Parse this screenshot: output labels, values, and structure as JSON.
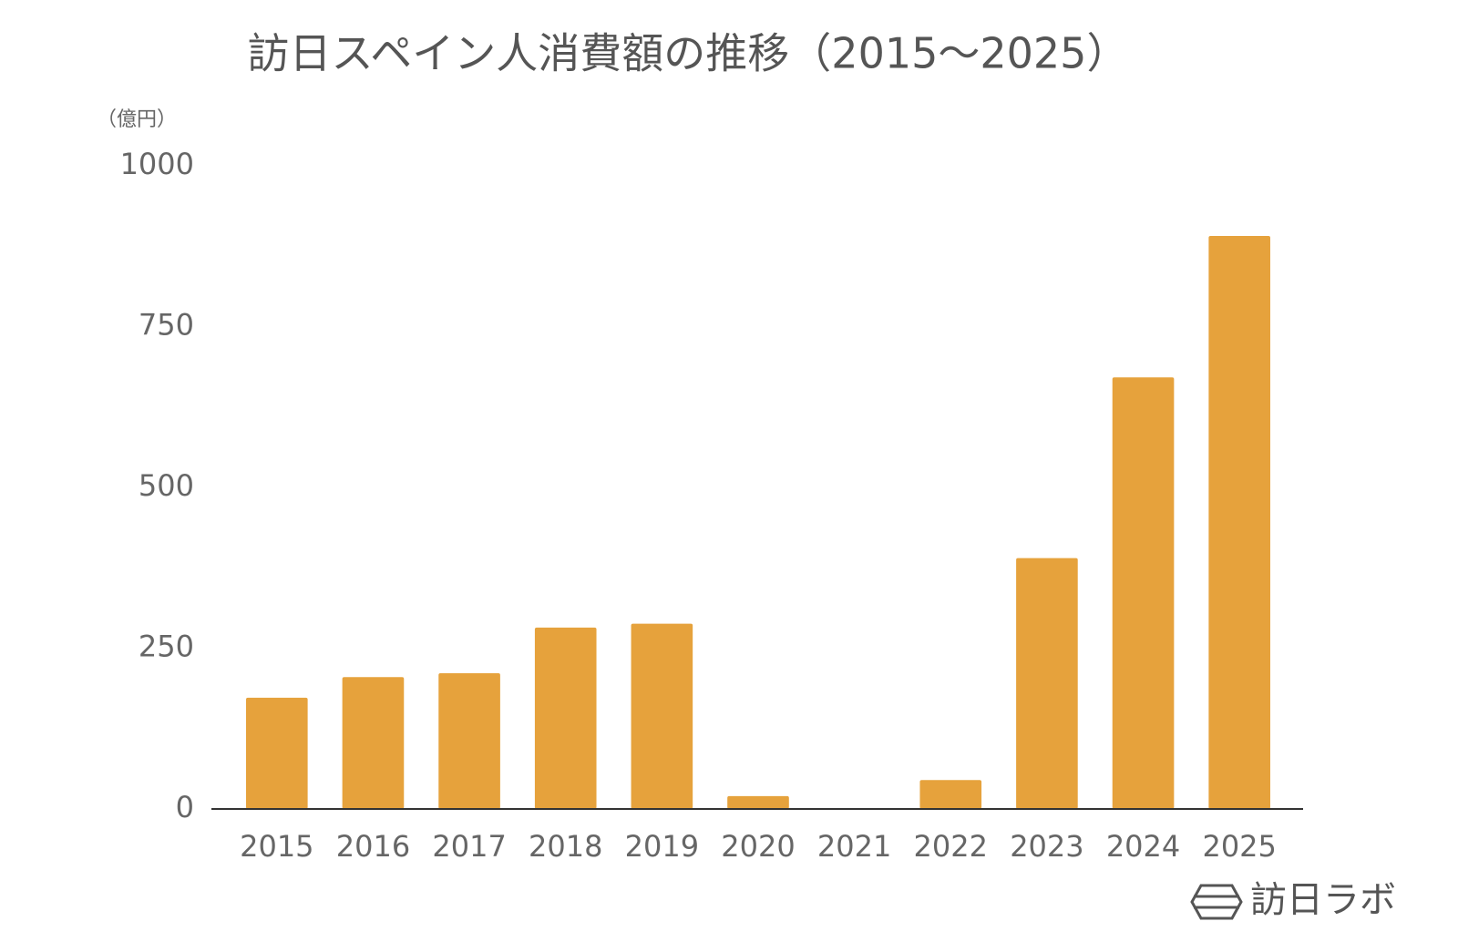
{
  "chart_data": {
    "type": "bar",
    "title": "訪日スペイン人消費額の推移（2015～2025）",
    "y_label": "（億円）",
    "categories": [
      "2015",
      "2016",
      "2017",
      "2018",
      "2019",
      "2020",
      "2021",
      "2022",
      "2023",
      "2024",
      "2025"
    ],
    "values": [
      173,
      205,
      211,
      282,
      288,
      20,
      0,
      45,
      390,
      671,
      891
    ],
    "color": "#e6a23c",
    "ylim": [
      0,
      1000
    ],
    "yticks": [
      0,
      250,
      500,
      750,
      1000
    ],
    "grid": false,
    "brand": "訪日ラボ"
  }
}
